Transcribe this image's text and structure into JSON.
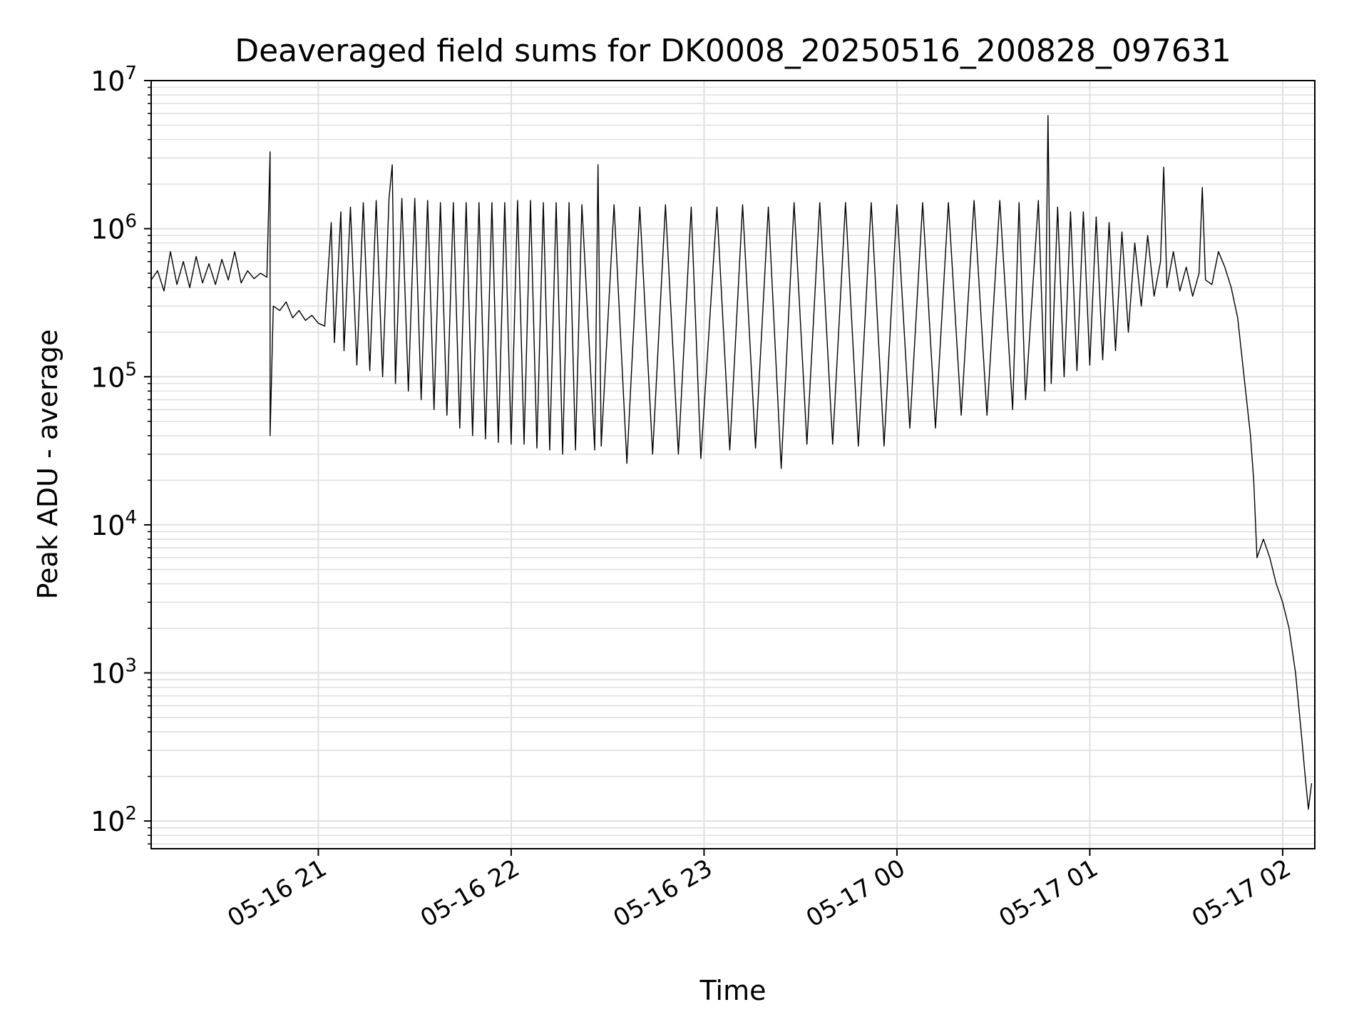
{
  "chart_data": {
    "type": "line",
    "title": "Deaveraged field sums for DK0008_20250516_200828_097631",
    "xlabel": "Time",
    "ylabel": "Peak ADU - average",
    "yscale": "log",
    "ylim": [
      65,
      10000000
    ],
    "xlim": [
      "2025-05-16 20:08",
      "2025-05-17 02:10"
    ],
    "x_ticks": [
      "2025-05-16 21:00",
      "2025-05-16 22:00",
      "2025-05-16 23:00",
      "2025-05-17 00:00",
      "2025-05-17 01:00",
      "2025-05-17 02:00"
    ],
    "x_tick_labels": [
      "05-16 21",
      "05-16 22",
      "05-16 23",
      "05-17 00",
      "05-17 01",
      "05-17 02"
    ],
    "y_ticks": [
      100,
      1000,
      10000,
      100000,
      1000000,
      10000000
    ],
    "y_tick_bases": [
      "10",
      "10",
      "10",
      "10",
      "10",
      "10"
    ],
    "y_tick_exponents": [
      "2",
      "3",
      "4",
      "5",
      "6",
      "7"
    ],
    "grid": true,
    "legend": "none",
    "line_color": "#000000",
    "grid_color": "#e0e0e0",
    "series": [
      {
        "points": [
          [
            "2025-05-16 20:08",
            450000
          ],
          [
            "2025-05-16 20:10",
            520000
          ],
          [
            "2025-05-16 20:12",
            380000
          ],
          [
            "2025-05-16 20:14",
            700000
          ],
          [
            "2025-05-16 20:16",
            420000
          ],
          [
            "2025-05-16 20:18",
            600000
          ],
          [
            "2025-05-16 20:20",
            400000
          ],
          [
            "2025-05-16 20:22",
            650000
          ],
          [
            "2025-05-16 20:24",
            430000
          ],
          [
            "2025-05-16 20:26",
            580000
          ],
          [
            "2025-05-16 20:28",
            420000
          ],
          [
            "2025-05-16 20:30",
            620000
          ],
          [
            "2025-05-16 20:32",
            450000
          ],
          [
            "2025-05-16 20:34",
            700000
          ],
          [
            "2025-05-16 20:36",
            430000
          ],
          [
            "2025-05-16 20:38",
            520000
          ],
          [
            "2025-05-16 20:40",
            460000
          ],
          [
            "2025-05-16 20:42",
            500000
          ],
          [
            "2025-05-16 20:44",
            470000
          ],
          [
            "2025-05-16 20:45",
            3300000
          ],
          [
            "2025-05-16 20:45",
            40000
          ],
          [
            "2025-05-16 20:46",
            300000
          ],
          [
            "2025-05-16 20:48",
            280000
          ],
          [
            "2025-05-16 20:50",
            320000
          ],
          [
            "2025-05-16 20:52",
            250000
          ],
          [
            "2025-05-16 20:54",
            280000
          ],
          [
            "2025-05-16 20:56",
            240000
          ],
          [
            "2025-05-16 20:58",
            260000
          ],
          [
            "2025-05-16 21:00",
            230000
          ],
          [
            "2025-05-16 21:02",
            220000
          ],
          [
            "2025-05-16 21:04",
            1100000
          ],
          [
            "2025-05-16 21:05",
            170000
          ],
          [
            "2025-05-16 21:07",
            1300000
          ],
          [
            "2025-05-16 21:08",
            150000
          ],
          [
            "2025-05-16 21:10",
            1400000
          ],
          [
            "2025-05-16 21:12",
            120000
          ],
          [
            "2025-05-16 21:14",
            1500000
          ],
          [
            "2025-05-16 21:16",
            110000
          ],
          [
            "2025-05-16 21:18",
            1550000
          ],
          [
            "2025-05-16 21:20",
            100000
          ],
          [
            "2025-05-16 21:22",
            1600000
          ],
          [
            "2025-05-16 21:23",
            2700000
          ],
          [
            "2025-05-16 21:24",
            90000
          ],
          [
            "2025-05-16 21:26",
            1600000
          ],
          [
            "2025-05-16 21:28",
            80000
          ],
          [
            "2025-05-16 21:30",
            1600000
          ],
          [
            "2025-05-16 21:32",
            70000
          ],
          [
            "2025-05-16 21:34",
            1550000
          ],
          [
            "2025-05-16 21:36",
            60000
          ],
          [
            "2025-05-16 21:38",
            1500000
          ],
          [
            "2025-05-16 21:40",
            55000
          ],
          [
            "2025-05-16 21:42",
            1500000
          ],
          [
            "2025-05-16 21:44",
            45000
          ],
          [
            "2025-05-16 21:46",
            1500000
          ],
          [
            "2025-05-16 21:48",
            40000
          ],
          [
            "2025-05-16 21:50",
            1500000
          ],
          [
            "2025-05-16 21:52",
            38000
          ],
          [
            "2025-05-16 21:54",
            1500000
          ],
          [
            "2025-05-16 21:56",
            36000
          ],
          [
            "2025-05-16 21:58",
            1500000
          ],
          [
            "2025-05-16 22:00",
            35000
          ],
          [
            "2025-05-16 22:02",
            1550000
          ],
          [
            "2025-05-16 22:04",
            35000
          ],
          [
            "2025-05-16 22:06",
            1550000
          ],
          [
            "2025-05-16 22:08",
            33000
          ],
          [
            "2025-05-16 22:10",
            1500000
          ],
          [
            "2025-05-16 22:12",
            32000
          ],
          [
            "2025-05-16 22:14",
            1500000
          ],
          [
            "2025-05-16 22:16",
            30000
          ],
          [
            "2025-05-16 22:18",
            1500000
          ],
          [
            "2025-05-16 22:20",
            32000
          ],
          [
            "2025-05-16 22:22",
            1450000
          ],
          [
            "2025-05-16 22:26",
            32000
          ],
          [
            "2025-05-16 22:27",
            2700000
          ],
          [
            "2025-05-16 22:28",
            34000
          ],
          [
            "2025-05-16 22:32",
            1450000
          ],
          [
            "2025-05-16 22:36",
            26000
          ],
          [
            "2025-05-16 22:40",
            1400000
          ],
          [
            "2025-05-16 22:44",
            30000
          ],
          [
            "2025-05-16 22:48",
            1450000
          ],
          [
            "2025-05-16 22:52",
            30000
          ],
          [
            "2025-05-16 22:56",
            1400000
          ],
          [
            "2025-05-16 22:59",
            28000
          ],
          [
            "2025-05-16 23:04",
            1400000
          ],
          [
            "2025-05-16 23:08",
            32000
          ],
          [
            "2025-05-16 23:12",
            1450000
          ],
          [
            "2025-05-16 23:16",
            33000
          ],
          [
            "2025-05-16 23:20",
            1400000
          ],
          [
            "2025-05-16 23:24",
            24000
          ],
          [
            "2025-05-16 23:28",
            1500000
          ],
          [
            "2025-05-16 23:32",
            35000
          ],
          [
            "2025-05-16 23:36",
            1500000
          ],
          [
            "2025-05-16 23:40",
            35000
          ],
          [
            "2025-05-16 23:44",
            1500000
          ],
          [
            "2025-05-16 23:48",
            34000
          ],
          [
            "2025-05-16 23:52",
            1500000
          ],
          [
            "2025-05-16 23:56",
            34000
          ],
          [
            "2025-05-17 00:00",
            1450000
          ],
          [
            "2025-05-17 00:04",
            45000
          ],
          [
            "2025-05-17 00:08",
            1500000
          ],
          [
            "2025-05-17 00:12",
            45000
          ],
          [
            "2025-05-17 00:16",
            1500000
          ],
          [
            "2025-05-17 00:20",
            55000
          ],
          [
            "2025-05-17 00:24",
            1550000
          ],
          [
            "2025-05-17 00:28",
            55000
          ],
          [
            "2025-05-17 00:32",
            1550000
          ],
          [
            "2025-05-17 00:36",
            60000
          ],
          [
            "2025-05-17 00:38",
            1500000
          ],
          [
            "2025-05-17 00:40",
            70000
          ],
          [
            "2025-05-17 00:44",
            1550000
          ],
          [
            "2025-05-17 00:46",
            80000
          ],
          [
            "2025-05-17 00:47",
            5800000
          ],
          [
            "2025-05-17 00:48",
            90000
          ],
          [
            "2025-05-17 00:50",
            1400000
          ],
          [
            "2025-05-17 00:52",
            100000
          ],
          [
            "2025-05-17 00:54",
            1300000
          ],
          [
            "2025-05-17 00:56",
            110000
          ],
          [
            "2025-05-17 00:58",
            1300000
          ],
          [
            "2025-05-17 01:00",
            120000
          ],
          [
            "2025-05-17 01:02",
            1200000
          ],
          [
            "2025-05-17 01:04",
            130000
          ],
          [
            "2025-05-17 01:06",
            1100000
          ],
          [
            "2025-05-17 01:08",
            150000
          ],
          [
            "2025-05-17 01:10",
            950000
          ],
          [
            "2025-05-17 01:12",
            200000
          ],
          [
            "2025-05-17 01:14",
            800000
          ],
          [
            "2025-05-17 01:16",
            300000
          ],
          [
            "2025-05-17 01:18",
            900000
          ],
          [
            "2025-05-17 01:20",
            350000
          ],
          [
            "2025-05-17 01:22",
            600000
          ],
          [
            "2025-05-17 01:23",
            2600000
          ],
          [
            "2025-05-17 01:24",
            400000
          ],
          [
            "2025-05-17 01:26",
            700000
          ],
          [
            "2025-05-17 01:28",
            380000
          ],
          [
            "2025-05-17 01:30",
            550000
          ],
          [
            "2025-05-17 01:32",
            350000
          ],
          [
            "2025-05-17 01:34",
            500000
          ],
          [
            "2025-05-17 01:35",
            1900000
          ],
          [
            "2025-05-17 01:36",
            450000
          ],
          [
            "2025-05-17 01:38",
            420000
          ],
          [
            "2025-05-17 01:40",
            700000
          ],
          [
            "2025-05-17 01:42",
            550000
          ],
          [
            "2025-05-17 01:44",
            400000
          ],
          [
            "2025-05-17 01:46",
            250000
          ],
          [
            "2025-05-17 01:48",
            100000
          ],
          [
            "2025-05-17 01:50",
            40000
          ],
          [
            "2025-05-17 01:51",
            20000
          ],
          [
            "2025-05-17 01:52",
            6000
          ],
          [
            "2025-05-17 01:54",
            8000
          ],
          [
            "2025-05-17 01:56",
            6000
          ],
          [
            "2025-05-17 01:58",
            4000
          ],
          [
            "2025-05-17 02:00",
            3000
          ],
          [
            "2025-05-17 02:02",
            2000
          ],
          [
            "2025-05-17 02:04",
            1000
          ],
          [
            "2025-05-17 02:06",
            350
          ],
          [
            "2025-05-17 02:07",
            200
          ],
          [
            "2025-05-17 02:08",
            120
          ],
          [
            "2025-05-17 02:09",
            180
          ]
        ]
      }
    ]
  }
}
